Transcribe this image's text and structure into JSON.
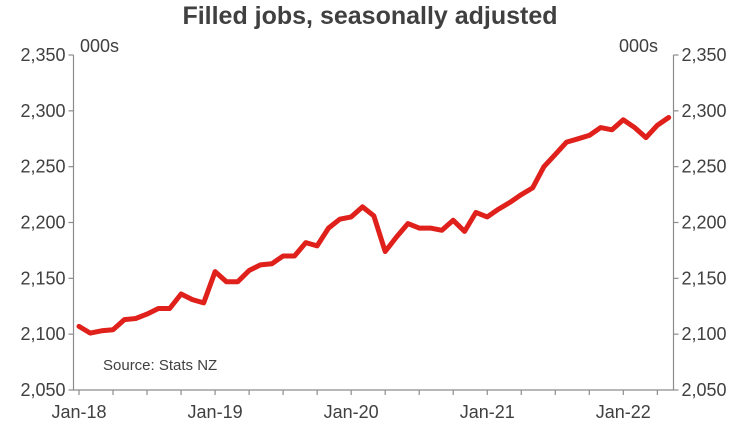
{
  "chart_data": {
    "type": "line",
    "title": "Filled jobs, seasonally adjusted",
    "unit_left": "000s",
    "unit_right": "000s",
    "source": "Source: Stats NZ",
    "ylim": [
      2050,
      2350
    ],
    "y_ticks": [
      "2,050",
      "2,100",
      "2,150",
      "2,200",
      "2,250",
      "2,300",
      "2,350"
    ],
    "x_tick_labels": [
      "Jan-18",
      "Jan-19",
      "Jan-20",
      "Jan-21",
      "Jan-22"
    ],
    "grid": false,
    "series": [
      {
        "color": "#e0201b",
        "x": [
          "2018-01",
          "2018-02",
          "2018-03",
          "2018-04",
          "2018-05",
          "2018-06",
          "2018-07",
          "2018-08",
          "2018-09",
          "2018-10",
          "2018-11",
          "2018-12",
          "2019-01",
          "2019-02",
          "2019-03",
          "2019-04",
          "2019-05",
          "2019-06",
          "2019-07",
          "2019-08",
          "2019-09",
          "2019-10",
          "2019-11",
          "2019-12",
          "2020-01",
          "2020-02",
          "2020-03",
          "2020-04",
          "2020-05",
          "2020-06",
          "2020-07",
          "2020-08",
          "2020-09",
          "2020-10",
          "2020-11",
          "2020-12",
          "2021-01",
          "2021-02",
          "2021-03",
          "2021-04",
          "2021-05",
          "2021-06",
          "2021-07",
          "2021-08",
          "2021-09",
          "2021-10",
          "2021-11",
          "2021-12",
          "2022-01",
          "2022-02",
          "2022-03",
          "2022-04",
          "2022-05"
        ],
        "values": [
          2107,
          2101,
          2103,
          2104,
          2113,
          2114,
          2118,
          2123,
          2123,
          2136,
          2131,
          2128,
          2156,
          2147,
          2147,
          2157,
          2162,
          2163,
          2170,
          2170,
          2182,
          2179,
          2195,
          2203,
          2205,
          2214,
          2206,
          2174,
          2187,
          2199,
          2195,
          2195,
          2193,
          2202,
          2192,
          2209,
          2205,
          2212,
          2218,
          2225,
          2231,
          2250,
          2261,
          2272,
          2275,
          2278,
          2285,
          2283,
          2292,
          2285,
          2276,
          2287,
          2294
        ]
      }
    ]
  }
}
